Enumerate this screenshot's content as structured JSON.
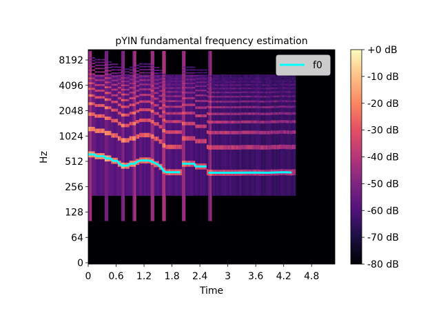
{
  "chart_data": {
    "type": "heatmap",
    "title": "pYIN fundamental frequency estimation",
    "xlabel": "Time",
    "ylabel": "Hz",
    "x_ticks": [
      "0",
      "0.6",
      "1.2",
      "1.8",
      "2.4",
      "3",
      "3.6",
      "4.2",
      "4.8"
    ],
    "x_tick_values": [
      0,
      0.6,
      1.2,
      1.8,
      2.4,
      3.0,
      3.6,
      4.2,
      4.8
    ],
    "xlim": [
      0,
      5.3
    ],
    "y_scale": "log2",
    "y_ticks": [
      "0",
      "64",
      "128",
      "256",
      "512",
      "1024",
      "2048",
      "4096",
      "8192"
    ],
    "y_tick_values": [
      0,
      64,
      128,
      256,
      512,
      1024,
      2048,
      4096,
      8192
    ],
    "ylim": [
      0,
      11025
    ],
    "colorbar": {
      "label_ticks": [
        "+0 dB",
        "-10 dB",
        "-20 dB",
        "-30 dB",
        "-40 dB",
        "-50 dB",
        "-60 dB",
        "-70 dB",
        "-80 dB"
      ],
      "range_db": [
        -80,
        0
      ],
      "colormap": "magma"
    },
    "legend": {
      "entries": [
        "f0"
      ],
      "position": "top-right"
    },
    "series": [
      {
        "name": "f0",
        "color": "#00ffff",
        "points": [
          [
            0.0,
            620
          ],
          [
            0.13,
            620
          ],
          [
            0.18,
            590
          ],
          [
            0.33,
            590
          ],
          [
            0.38,
            555
          ],
          [
            0.48,
            555
          ],
          [
            0.53,
            520
          ],
          [
            0.62,
            520
          ],
          [
            0.67,
            480
          ],
          [
            0.73,
            455
          ],
          [
            0.85,
            455
          ],
          [
            0.9,
            480
          ],
          [
            1.0,
            480
          ],
          [
            1.05,
            505
          ],
          [
            1.13,
            525
          ],
          [
            1.3,
            525
          ],
          [
            1.38,
            505
          ],
          [
            1.48,
            475
          ],
          [
            1.56,
            440
          ],
          [
            1.62,
            395
          ],
          [
            1.68,
            380
          ],
          [
            1.98,
            380
          ],
          [
            null,
            null
          ],
          [
            2.02,
            480
          ],
          [
            2.28,
            480
          ],
          [
            2.31,
            445
          ],
          [
            2.54,
            445
          ],
          [
            null,
            null
          ],
          [
            2.58,
            375
          ],
          [
            3.05,
            375
          ],
          [
            3.5,
            377
          ],
          [
            3.85,
            375
          ],
          [
            4.0,
            378
          ],
          [
            4.18,
            381
          ],
          [
            4.3,
            379
          ],
          [
            4.37,
            377
          ]
        ]
      }
    ],
    "spectrogram": {
      "voiced_segments": [
        {
          "start": 0.0,
          "end": 1.98,
          "f0_ref": 480
        },
        {
          "start": 2.02,
          "end": 2.54,
          "f0_ref": 460
        },
        {
          "start": 2.58,
          "end": 4.37,
          "f0_ref": 375
        }
      ],
      "onsets": [
        0.0,
        0.35,
        0.7,
        0.95,
        1.35,
        1.6,
        2.02,
        2.58
      ],
      "sound_end": 4.4
    }
  }
}
